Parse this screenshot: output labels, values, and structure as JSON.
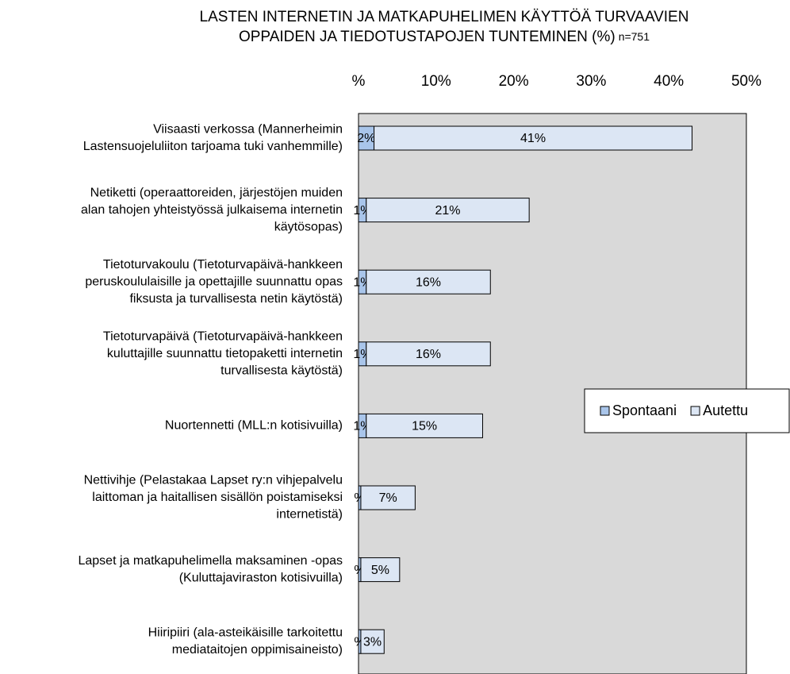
{
  "chart_data": {
    "type": "bar",
    "orientation": "horizontal",
    "stacked": true,
    "title": [
      "LASTEN INTERNETIN JA MATKAPUHELIMEN KÄYTTÖÄ TURVAAVIEN",
      "OPPAIDEN JA TIEDOTUSTAPOJEN TUNTEMINEN (%)"
    ],
    "subtitle": "n=751",
    "categories": [
      [
        "Viisaasti verkossa (Mannerheimin",
        "Lastensuojeluliiton tarjoama tuki vanhemmille)"
      ],
      [
        "Netiketti (operaattoreiden, järjestöjen muiden",
        "alan tahojen yhteistyössä julkaisema internetin",
        "käytösopas)"
      ],
      [
        "Tietoturvakoulu (Tietoturvapäivä-hankkeen",
        "peruskoululaisille ja opettajille suunnattu opas",
        "fiksusta ja turvallisesta netin käytöstä)"
      ],
      [
        "Tietoturvapäivä (Tietoturvapäivä-hankkeen",
        "kuluttajille suunnattu tietopaketti internetin",
        "turvallisesta käytöstä)"
      ],
      [
        "Nuortennetti (MLL:n kotisivuilla)"
      ],
      [
        "Nettivihje (Pelastakaa Lapset ry:n vihjepalvelu",
        "laittoman ja haitallisen sisällön poistamiseksi",
        "internetistä)"
      ],
      [
        "Lapset ja matkapuhelimella maksaminen -opas",
        "(Kuluttajaviraston kotisivuilla)"
      ],
      [
        "Hiiripiiri (ala-asteikäisille tarkoitettu",
        "mediataitojen oppimisaineisto)"
      ]
    ],
    "series": [
      {
        "name": "Spontaani",
        "color": "#a9c5ea",
        "values": [
          2,
          1,
          1,
          1,
          1,
          0.3,
          0.3,
          0.3
        ],
        "value_labels": [
          "2%",
          "1%",
          "1%",
          "1%",
          "1%",
          "%",
          "%",
          "%"
        ]
      },
      {
        "name": "Autettu",
        "color": "#dce6f4",
        "values": [
          41,
          21,
          16,
          16,
          15,
          7,
          5,
          3
        ],
        "value_labels": [
          "41%",
          "21%",
          "16%",
          "16%",
          "15%",
          "7%",
          "5%",
          "3%"
        ]
      }
    ],
    "xlim": [
      0,
      50
    ],
    "xticks": [
      {
        "value": 0,
        "label": "%"
      },
      {
        "value": 10,
        "label": "10%"
      },
      {
        "value": 20,
        "label": "20%"
      },
      {
        "value": 30,
        "label": "30%"
      },
      {
        "value": 40,
        "label": "40%"
      },
      {
        "value": 50,
        "label": "50%"
      }
    ],
    "grid": false,
    "legend": "right",
    "plot_background": "#d9d9d9"
  }
}
